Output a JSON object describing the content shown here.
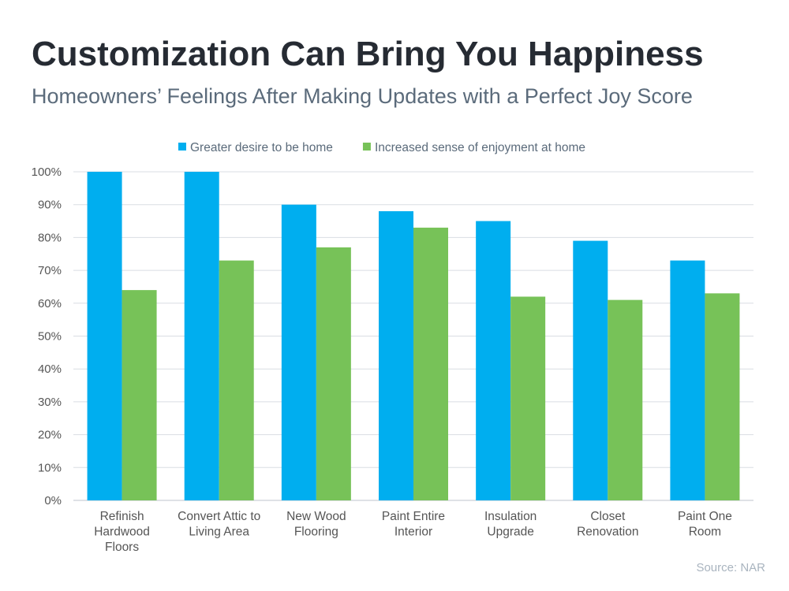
{
  "title": "Customization Can Bring You Happiness",
  "subtitle": "Homeowners’ Feelings After Making Updates with a Perfect Joy Score",
  "source": "Source: NAR",
  "colors": {
    "series1": "#00AEEF",
    "series2": "#77C258",
    "grid": "#D9DDE3"
  },
  "chart_data": {
    "type": "bar",
    "categories": [
      [
        "Refinish",
        "Hardwood",
        "Floors"
      ],
      [
        "Convert Attic to",
        "Living Area"
      ],
      [
        "New Wood",
        "Flooring"
      ],
      [
        "Paint Entire",
        "Interior"
      ],
      [
        "Insulation",
        "Upgrade"
      ],
      [
        "Closet",
        "Renovation"
      ],
      [
        "Paint One",
        "Room"
      ]
    ],
    "series": [
      {
        "name": "Greater desire to be home",
        "values": [
          100,
          100,
          90,
          88,
          85,
          79,
          73
        ]
      },
      {
        "name": "Increased sense of enjoyment at home",
        "values": [
          64,
          73,
          77,
          83,
          62,
          61,
          63
        ]
      }
    ],
    "ylim": [
      0,
      100
    ],
    "yticks": [
      "0%",
      "10%",
      "20%",
      "30%",
      "40%",
      "50%",
      "60%",
      "70%",
      "80%",
      "90%",
      "100%"
    ],
    "grid": true,
    "legend": "top"
  }
}
